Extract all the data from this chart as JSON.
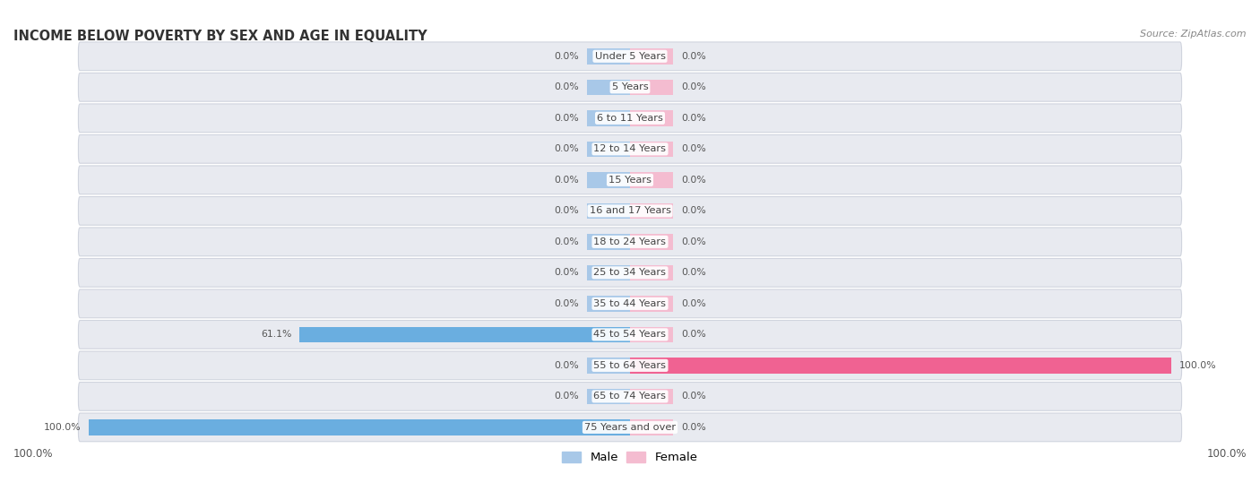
{
  "title": "INCOME BELOW POVERTY BY SEX AND AGE IN EQUALITY",
  "source": "Source: ZipAtlas.com",
  "categories": [
    "Under 5 Years",
    "5 Years",
    "6 to 11 Years",
    "12 to 14 Years",
    "15 Years",
    "16 and 17 Years",
    "18 to 24 Years",
    "25 to 34 Years",
    "35 to 44 Years",
    "45 to 54 Years",
    "55 to 64 Years",
    "65 to 74 Years",
    "75 Years and over"
  ],
  "male_values": [
    0.0,
    0.0,
    0.0,
    0.0,
    0.0,
    0.0,
    0.0,
    0.0,
    0.0,
    61.1,
    0.0,
    0.0,
    100.0
  ],
  "female_values": [
    0.0,
    0.0,
    0.0,
    0.0,
    0.0,
    0.0,
    0.0,
    0.0,
    0.0,
    0.0,
    100.0,
    0.0,
    0.0
  ],
  "male_color_stub": "#a8c8e8",
  "male_color_fill": "#6aaee0",
  "female_color_stub": "#f4bcd0",
  "female_color_fill": "#f06292",
  "row_bg": "#e8eaf0",
  "row_line": "#d0d4de",
  "title_color": "#333333",
  "source_color": "#888888",
  "label_color": "#444444",
  "value_color": "#555555",
  "max_scale": 100,
  "stub_pct": 8.0,
  "legend_male": "Male",
  "legend_female": "Female",
  "bottom_left": "100.0%",
  "bottom_right": "100.0%"
}
